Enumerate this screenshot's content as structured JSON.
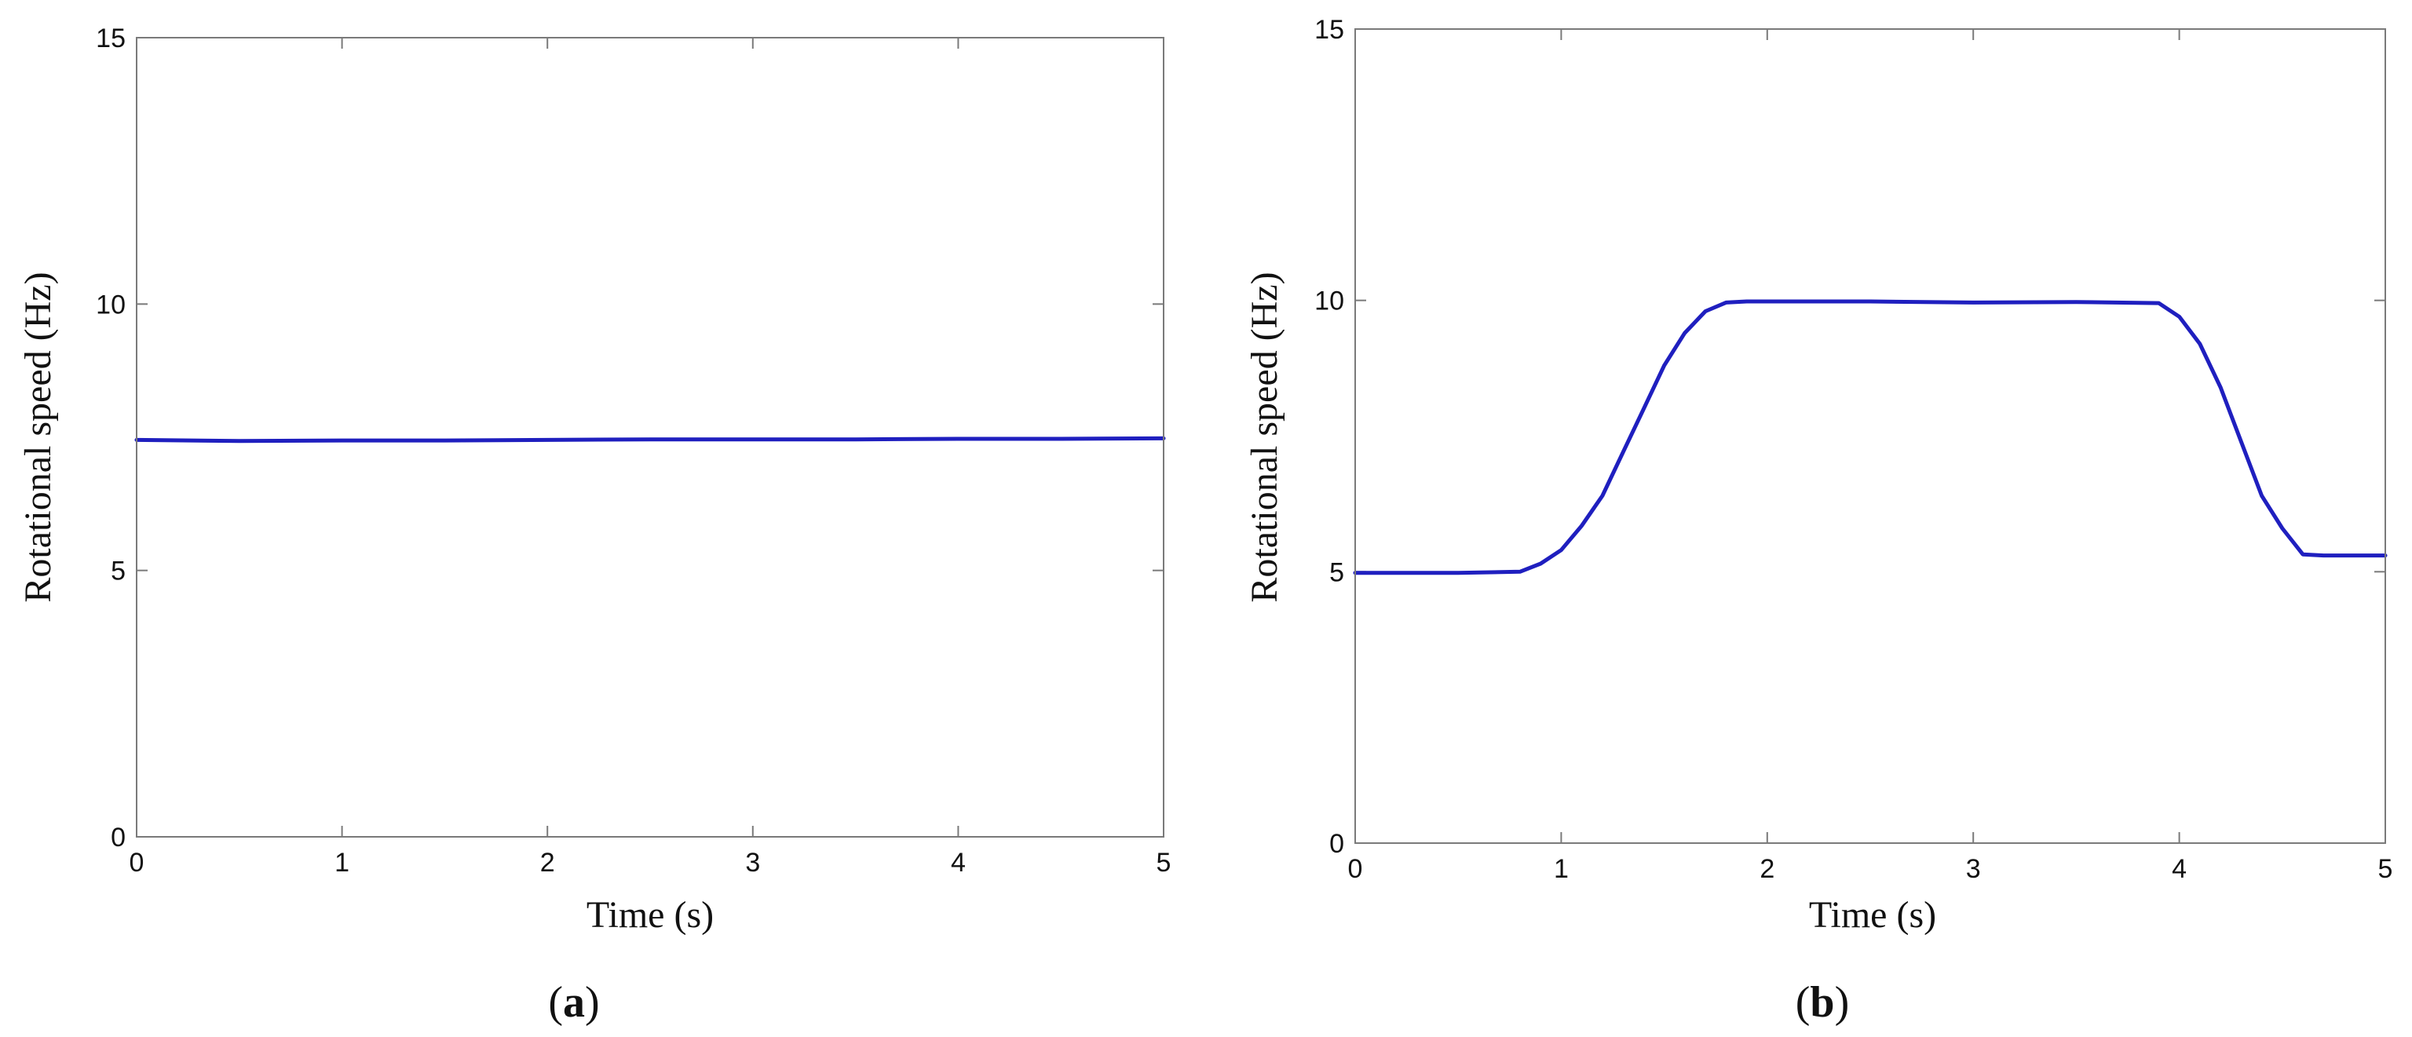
{
  "chart_data": [
    {
      "type": "line",
      "panel_label": "a",
      "xlabel": "Time (s)",
      "ylabel": "Rotational speed (Hz)",
      "xlim": [
        0,
        5
      ],
      "ylim": [
        0,
        15
      ],
      "x_ticks": [
        0,
        1,
        2,
        3,
        4,
        5
      ],
      "y_ticks": [
        0,
        5,
        10,
        15
      ],
      "grid": false,
      "series": [
        {
          "color": "#1f1fbf",
          "x": [
            0,
            0.5,
            1,
            1.5,
            2,
            2.5,
            3,
            3.5,
            4,
            4.5,
            5
          ],
          "y": [
            7.45,
            7.43,
            7.44,
            7.44,
            7.45,
            7.46,
            7.46,
            7.46,
            7.47,
            7.47,
            7.48
          ]
        }
      ]
    },
    {
      "type": "line",
      "panel_label": "b",
      "xlabel": "Time (s)",
      "ylabel": "Rotational speed (Hz)",
      "xlim": [
        0,
        5
      ],
      "ylim": [
        0,
        15
      ],
      "x_ticks": [
        0,
        1,
        2,
        3,
        4,
        5
      ],
      "y_ticks": [
        0,
        5,
        10,
        15
      ],
      "grid": false,
      "series": [
        {
          "color": "#1f1fbf",
          "x": [
            0,
            0.5,
            0.8,
            0.9,
            1.0,
            1.1,
            1.2,
            1.3,
            1.4,
            1.5,
            1.6,
            1.7,
            1.8,
            1.9,
            2.0,
            2.5,
            3.0,
            3.5,
            3.9,
            4.0,
            4.1,
            4.2,
            4.3,
            4.4,
            4.5,
            4.6,
            4.7,
            5.0
          ],
          "y": [
            4.98,
            4.98,
            5.0,
            5.15,
            5.4,
            5.85,
            6.4,
            7.2,
            8.0,
            8.8,
            9.4,
            9.8,
            9.96,
            9.98,
            9.98,
            9.98,
            9.96,
            9.97,
            9.95,
            9.7,
            9.2,
            8.4,
            7.4,
            6.4,
            5.8,
            5.32,
            5.3,
            5.3
          ]
        }
      ]
    }
  ]
}
